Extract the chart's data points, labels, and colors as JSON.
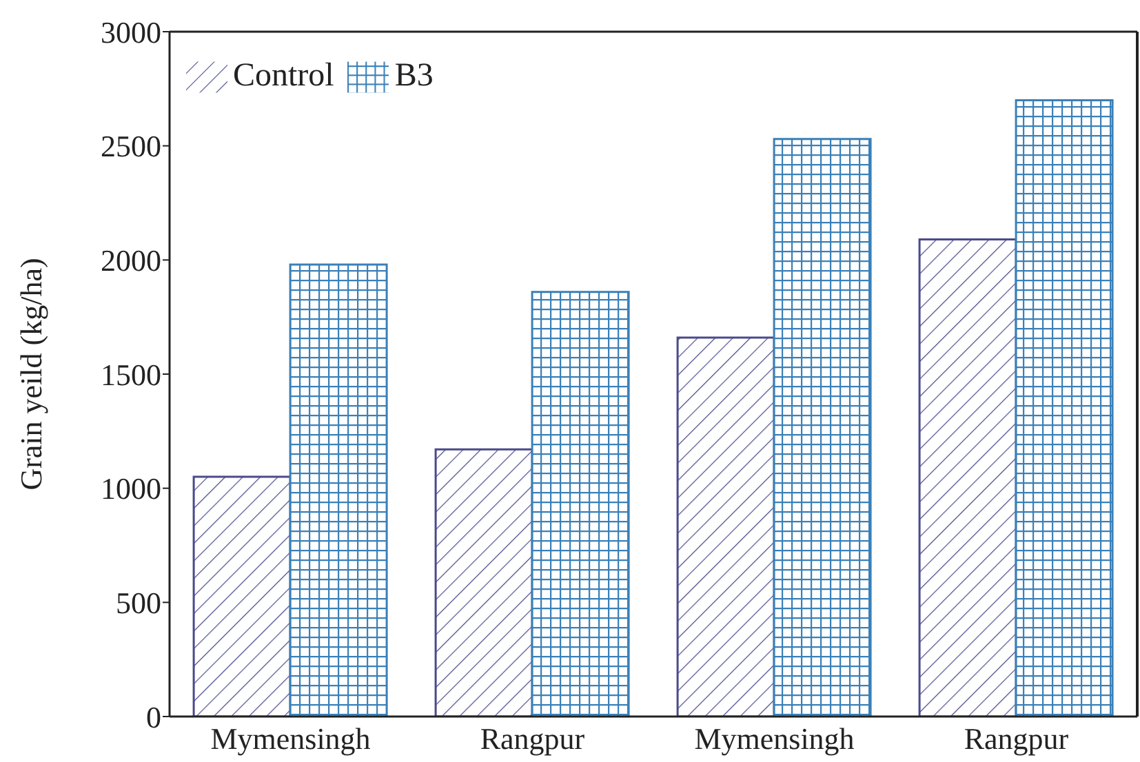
{
  "chart_data": {
    "type": "bar",
    "ylabel": "Grain yeild (kg/ha)",
    "categories": [
      "Mymensingh",
      "Rangpur",
      "Mymensingh",
      "Rangpur"
    ],
    "series": [
      {
        "name": "Control",
        "color": "#4a4a8c",
        "values": [
          1050,
          1170,
          1660,
          2090
        ]
      },
      {
        "name": "B3",
        "color": "#3a80b8",
        "values": [
          1980,
          1860,
          2530,
          2700
        ]
      }
    ],
    "ylim": [
      0,
      3000
    ],
    "yticks": [
      0,
      500,
      1000,
      1500,
      2000,
      2500,
      3000
    ],
    "grid": false,
    "legend": "top left"
  }
}
